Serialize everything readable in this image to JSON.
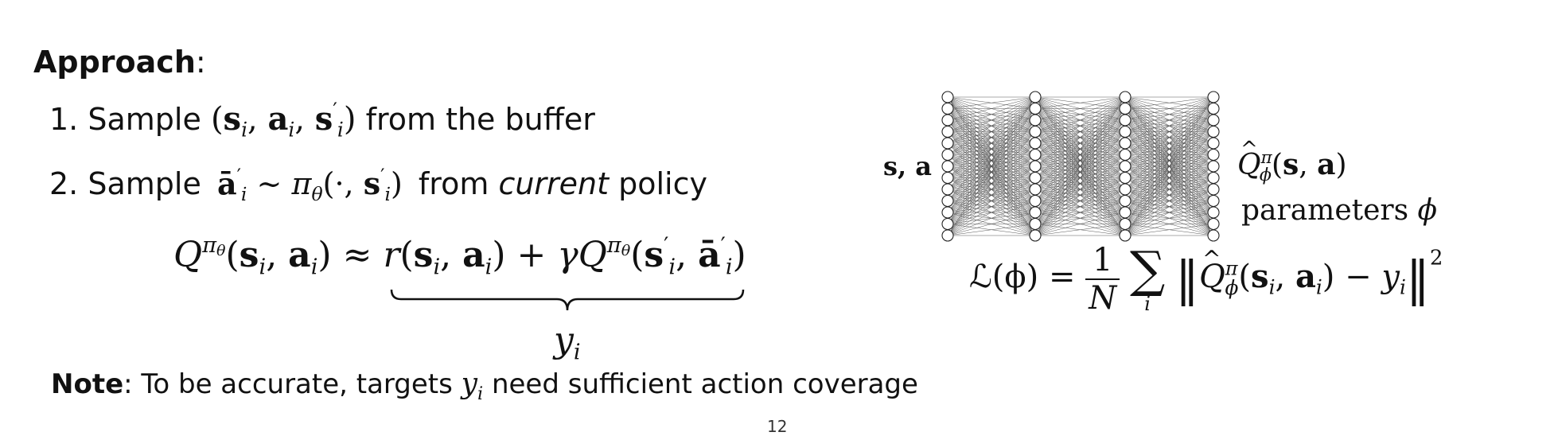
{
  "approach": {
    "heading": "Approach",
    "colon": ":"
  },
  "steps": [
    {
      "num": "1.",
      "word": "Sample",
      "tail": "from the buffer"
    },
    {
      "num": "2.",
      "word": "Sample",
      "tail_a": "from",
      "tail_em": "current",
      "tail_b": "policy"
    }
  ],
  "equation": {
    "target_label": "y",
    "target_sub": "i"
  },
  "network": {
    "input_label": "s, a",
    "params_label": "parameters",
    "params_symbol": "ϕ"
  },
  "loss": {
    "lhs": "ℒ(ϕ) =",
    "num": "1",
    "den": "N",
    "sigma": "∑",
    "sum_index": "i"
  },
  "note": {
    "label": "Note",
    "text_a": ": To be accurate, targets",
    "text_b": "need sufficient action coverage"
  },
  "page_number": "12"
}
